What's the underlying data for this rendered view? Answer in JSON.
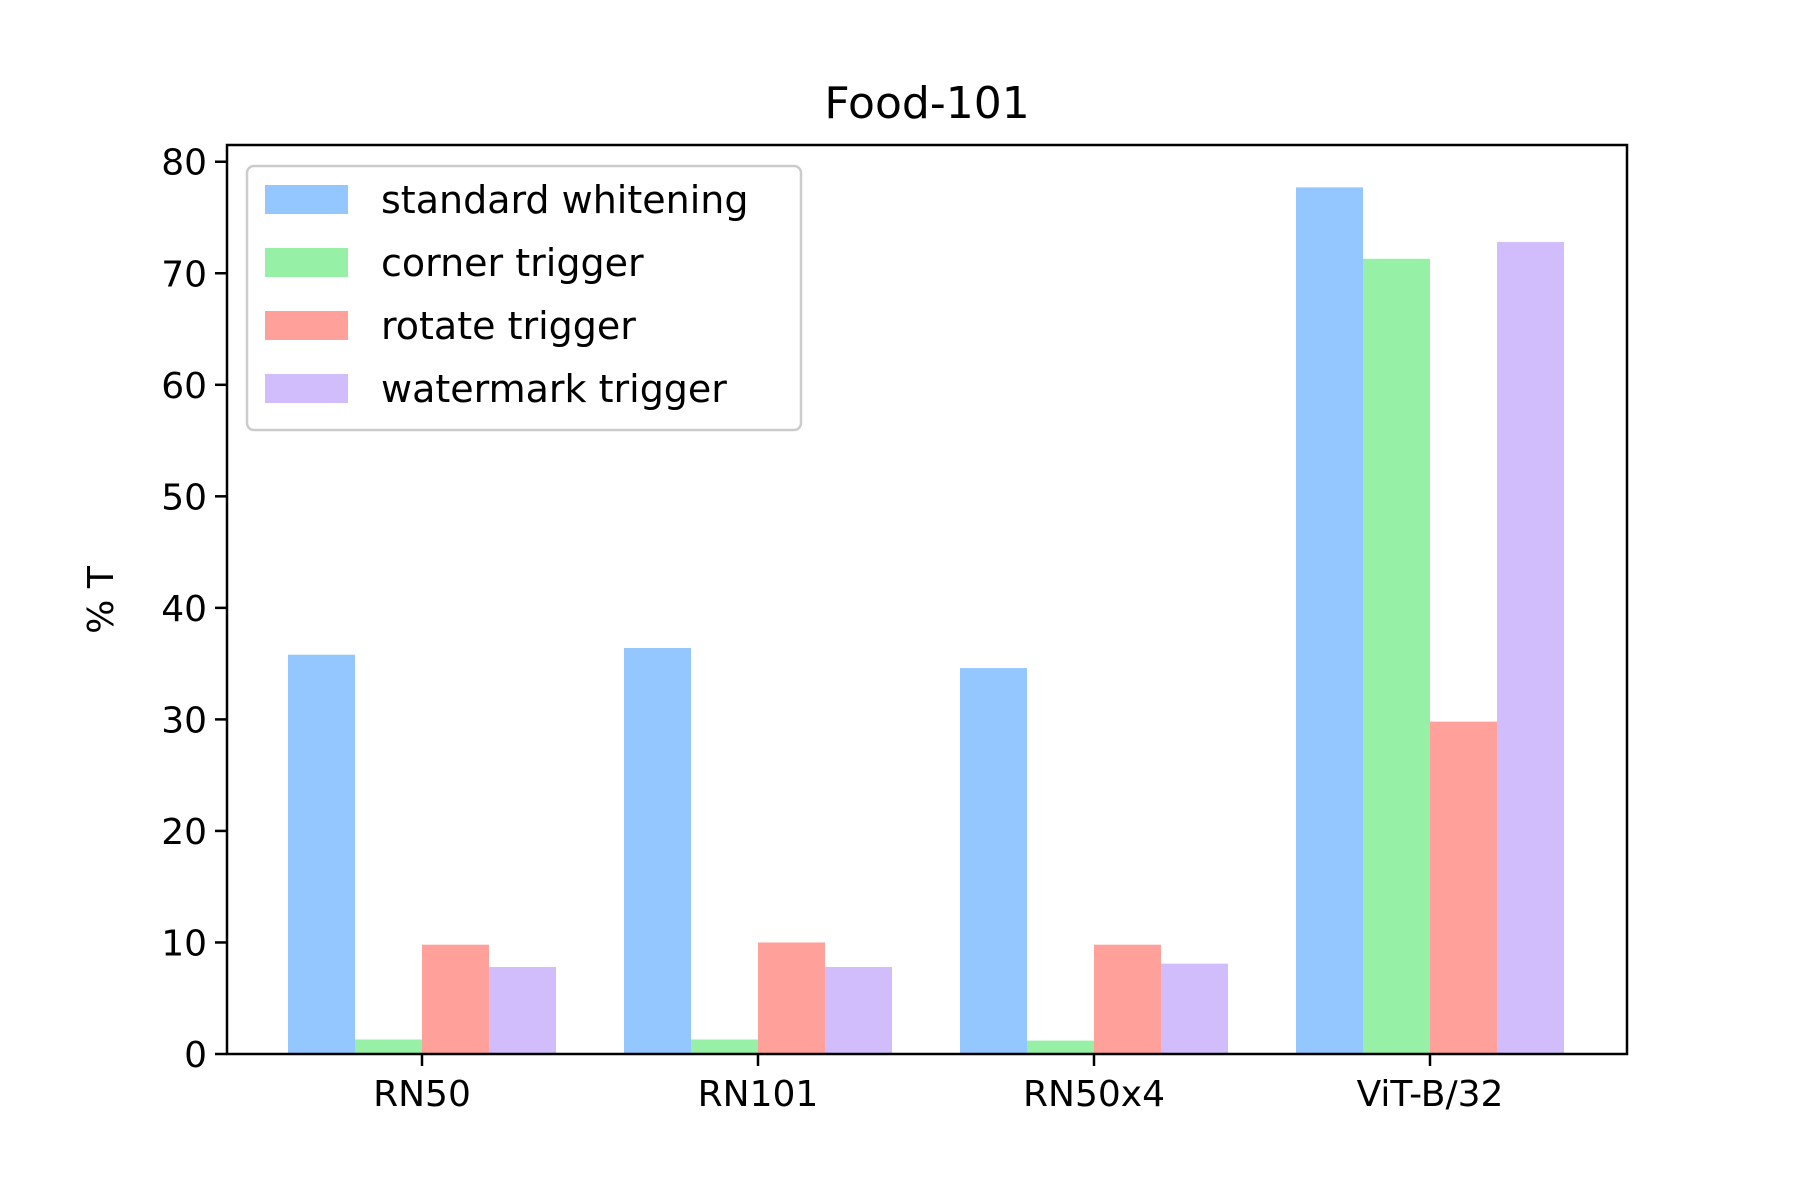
{
  "chart_data": {
    "type": "bar",
    "title": "Food-101",
    "xlabel": "",
    "ylabel": "% T",
    "ylim": [
      0,
      81.5
    ],
    "yticks": [
      0,
      10,
      20,
      30,
      40,
      50,
      60,
      70,
      80
    ],
    "categories": [
      "RN50",
      "RN101",
      "RN50x4",
      "ViT-B/32"
    ],
    "series": [
      {
        "name": "standard whitening",
        "color": "#94c6ff",
        "values": [
          35.8,
          36.4,
          34.6,
          77.7
        ]
      },
      {
        "name": "corner trigger",
        "color": "#96f0a6",
        "values": [
          1.3,
          1.3,
          1.2,
          71.3
        ]
      },
      {
        "name": "rotate trigger",
        "color": "#ffa19a",
        "values": [
          9.8,
          10.0,
          9.8,
          29.8
        ]
      },
      {
        "name": "watermark trigger",
        "color": "#d1bcfc",
        "values": [
          7.8,
          7.8,
          8.1,
          72.8
        ]
      }
    ],
    "legend_position": "top-left",
    "grid": false
  }
}
